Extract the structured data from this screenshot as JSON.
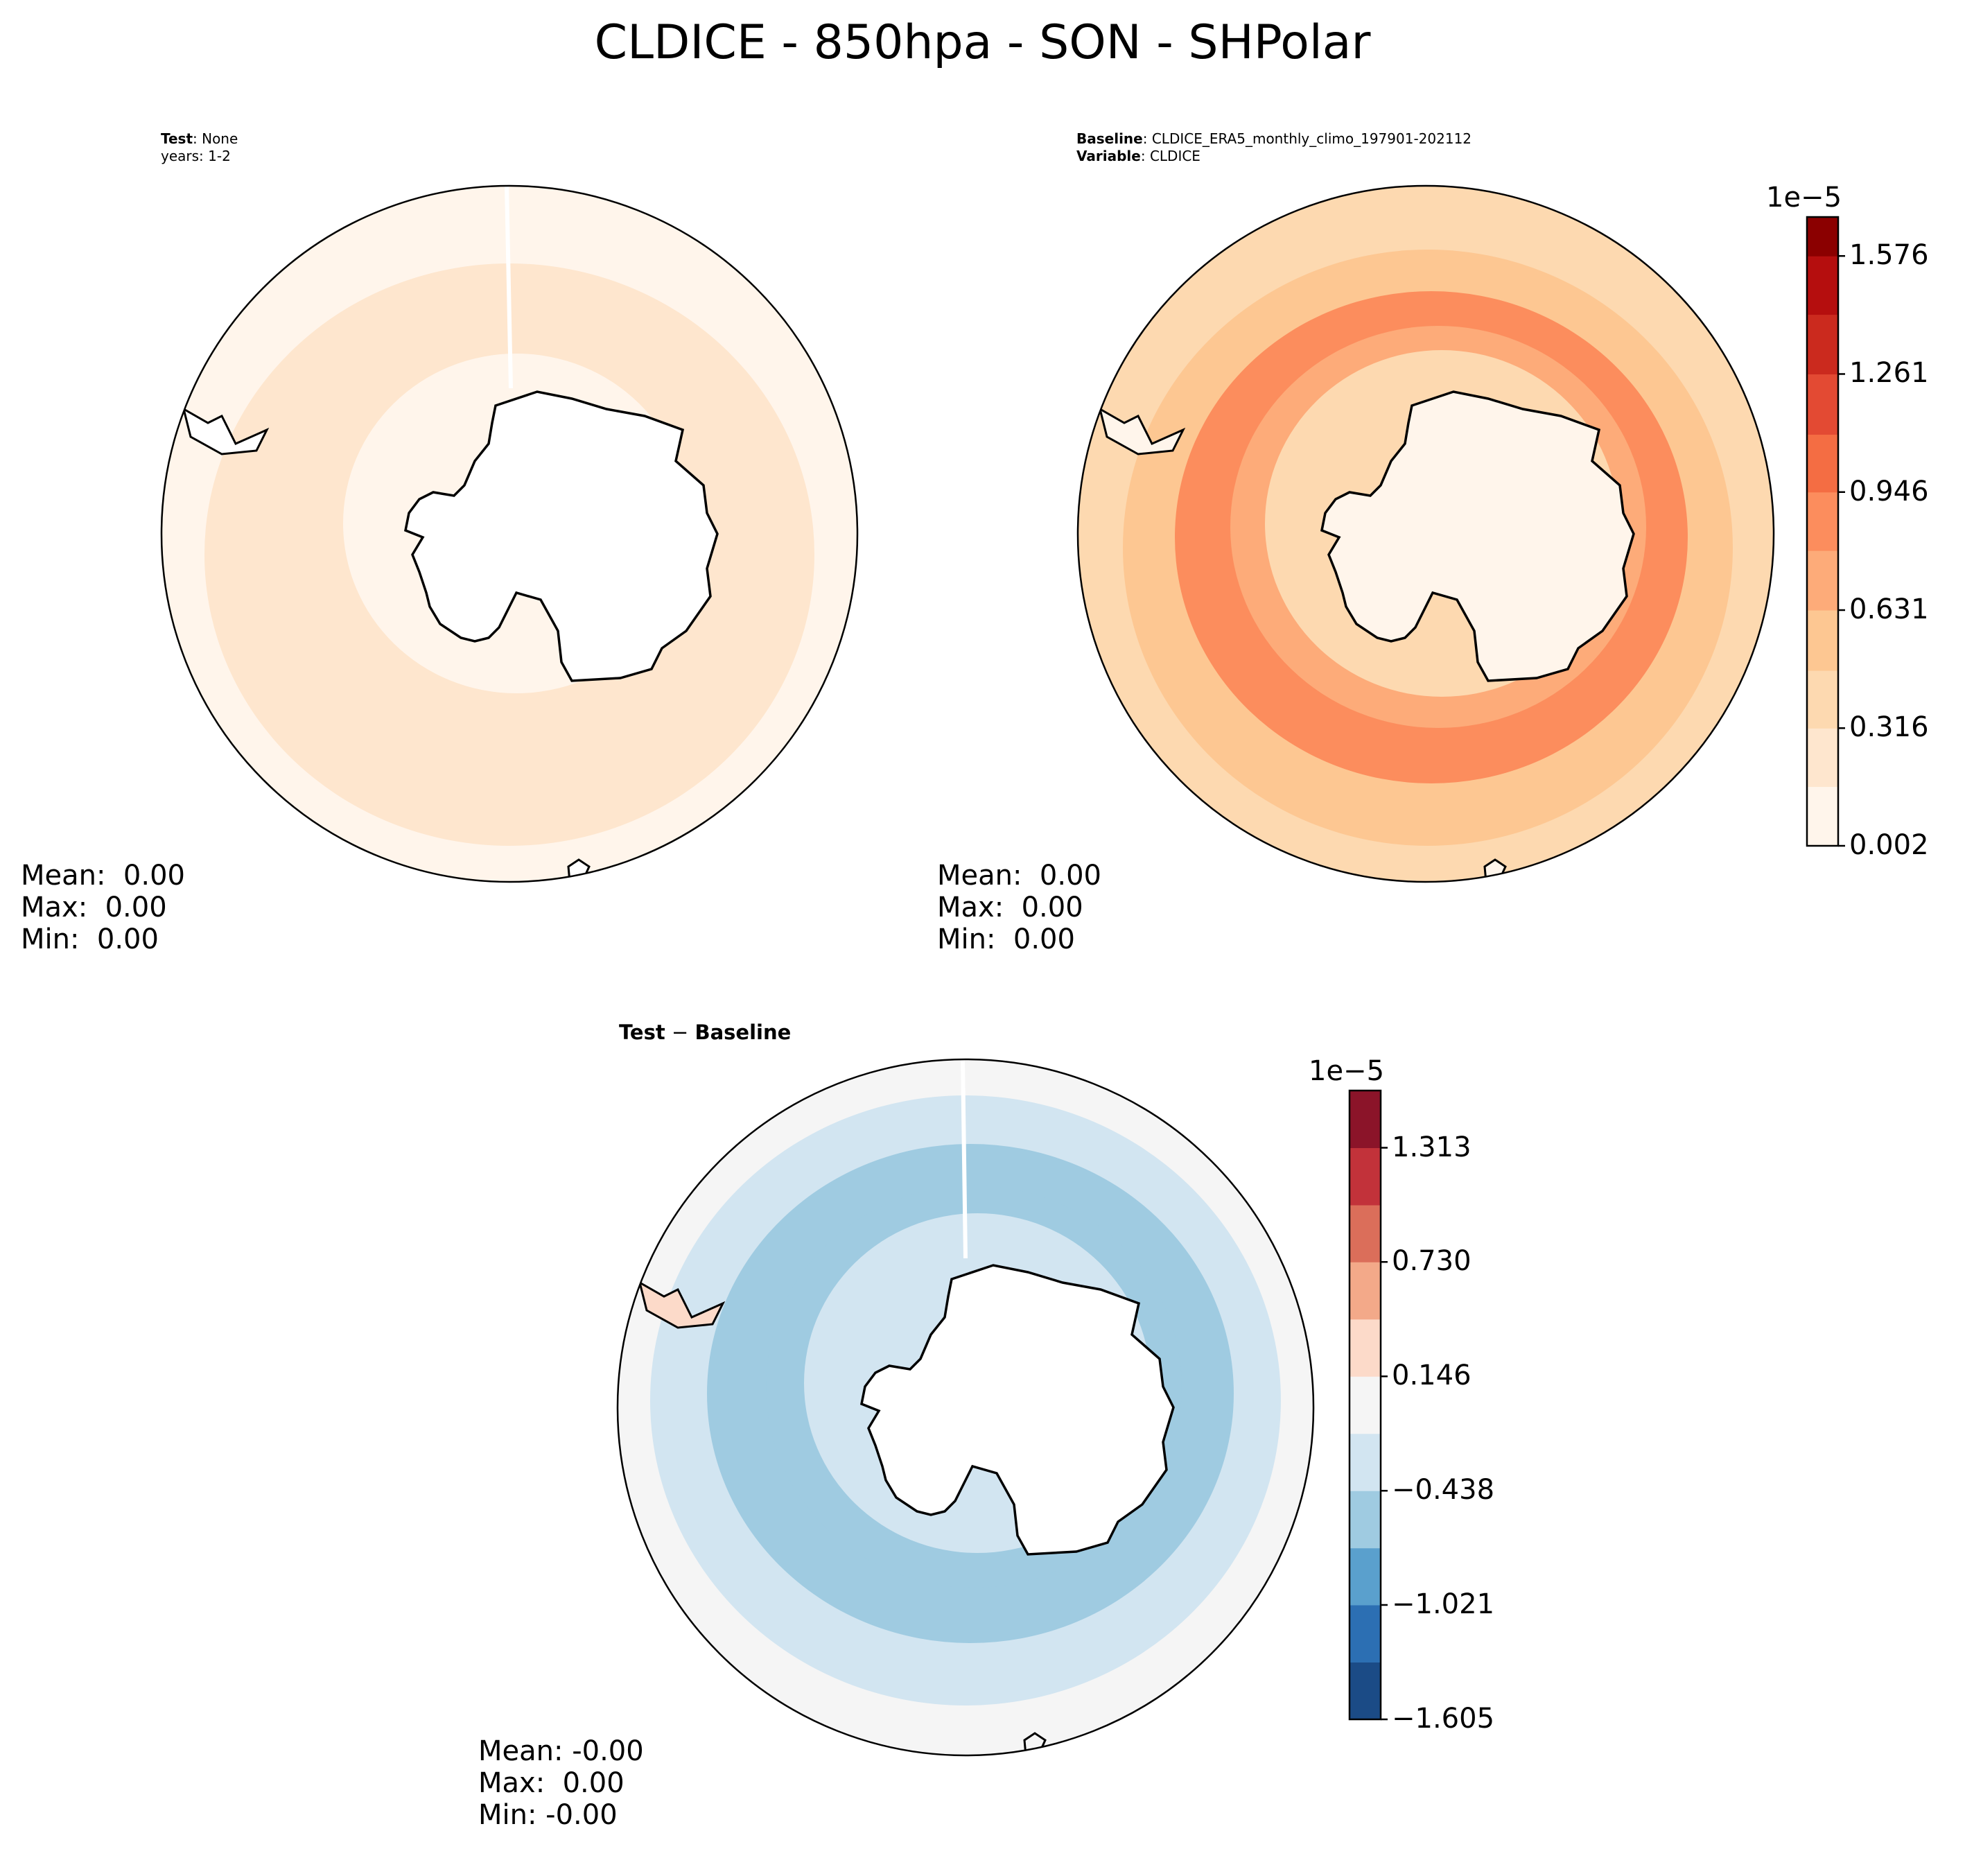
{
  "figure": {
    "title": "CLDICE - 850hpa - SON - SHPolar"
  },
  "chart_data": [
    {
      "type": "heatmap",
      "panel": "test",
      "projection": "south-polar-stereographic",
      "header_bold_1": "Test",
      "header_text_1": ": None",
      "header_line_2": "years: 1-2",
      "stats": {
        "mean_label": "Mean:",
        "mean": "0.00",
        "max_label": "Max:",
        "max": "0.00",
        "min_label": "Min:",
        "min": "0.00"
      },
      "colormap": "Reds",
      "rings": [
        {
          "ring": "antarctic-coast-band",
          "level": 0
        },
        {
          "ring": "sea-ice-zone",
          "level": 1
        },
        {
          "ring": "storm-track",
          "level": 1
        },
        {
          "ring": "mid-latitudes",
          "level": 1
        },
        {
          "ring": "outer",
          "level": 0
        }
      ]
    },
    {
      "type": "heatmap",
      "panel": "baseline",
      "projection": "south-polar-stereographic",
      "header_bold_1": "Baseline",
      "header_text_1": ": CLDICE_ERA5_monthly_climo_197901-202112",
      "header_bold_2": "Variable",
      "header_text_2": ": CLDICE",
      "stats": {
        "mean_label": "Mean:",
        "mean": "0.00",
        "max_label": "Max:",
        "max": "0.00",
        "min_label": "Min:",
        "min": "0.00"
      },
      "colormap": "Reds",
      "colorbar": {
        "exponent_label": "1e−5",
        "range": [
          0.002,
          1.68
        ],
        "ticks": [
          "0.002",
          "0.316",
          "0.631",
          "0.946",
          "1.261",
          "1.576"
        ],
        "levels": [
          0.002,
          0.16,
          0.316,
          0.47,
          0.631,
          0.79,
          0.946,
          1.1,
          1.261,
          1.42,
          1.576,
          1.68
        ],
        "colors": [
          "#fff5eb",
          "#fee6ce",
          "#fdd9b0",
          "#fdc792",
          "#fdab79",
          "#fc8d5d",
          "#f46d43",
          "#e34a33",
          "#cb2a1e",
          "#b50e0e",
          "#8b0000"
        ]
      },
      "rings": [
        {
          "ring": "antarctic-interior",
          "level": 0
        },
        {
          "ring": "antarctic-coast-band",
          "level": 2
        },
        {
          "ring": "sea-ice-zone",
          "level": 4
        },
        {
          "ring": "storm-track",
          "level": 5
        },
        {
          "ring": "mid-latitudes",
          "level": 3
        },
        {
          "ring": "outer",
          "level": 2
        }
      ]
    },
    {
      "type": "heatmap",
      "panel": "difference",
      "projection": "south-polar-stereographic",
      "header_bold_1": "Test",
      "header_operator": " − ",
      "header_bold_2": "Baseline",
      "stats": {
        "mean_label": "Mean:",
        "mean": "-0.00",
        "max_label": "Max:",
        "max": "0.00",
        "min_label": "Min:",
        "min": "-0.00"
      },
      "colormap": "RdBu_r",
      "colorbar": {
        "exponent_label": "1e−5",
        "range": [
          -1.605,
          1.605
        ],
        "ticks": [
          "−1.605",
          "−1.021",
          "−0.438",
          "0.146",
          "0.730",
          "1.313"
        ],
        "levels": [
          -1.605,
          -1.313,
          -1.021,
          -0.73,
          -0.438,
          -0.146,
          0.146,
          0.438,
          0.73,
          1.021,
          1.313,
          1.605
        ],
        "colors": [
          "#1b4b86",
          "#2c6fb3",
          "#5aa0cd",
          "#9fcbe1",
          "#d2e5f1",
          "#f5f5f5",
          "#fcdac9",
          "#f3a989",
          "#db6e5a",
          "#c2323a",
          "#8b1429"
        ]
      },
      "rings": [
        {
          "ring": "antarctic-coast-band",
          "level": 4
        },
        {
          "ring": "sea-ice-zone",
          "level": 3
        },
        {
          "ring": "storm-track",
          "level": 3
        },
        {
          "ring": "mid-latitudes",
          "level": 4
        },
        {
          "ring": "outer",
          "level": 5
        }
      ]
    }
  ]
}
